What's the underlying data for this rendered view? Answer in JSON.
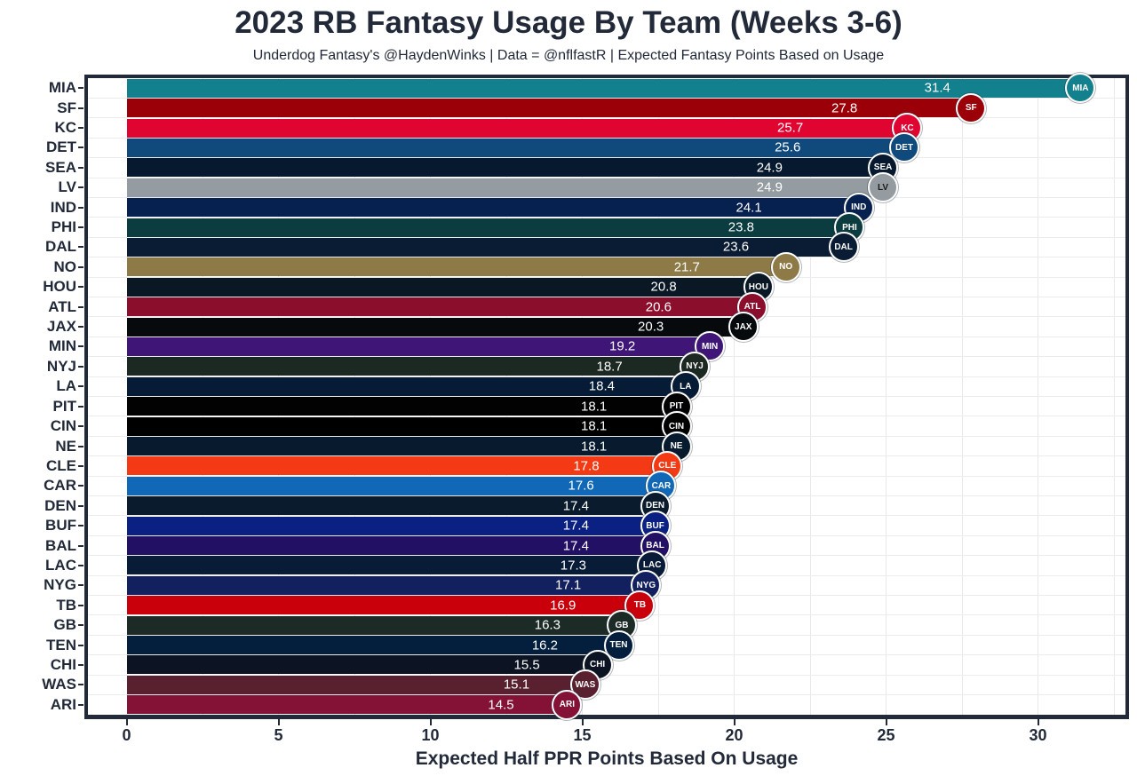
{
  "header": {
    "title": "2023 RB Fantasy Usage By Team (Weeks 3-6)",
    "subtitle": "Underdog Fantasy's @HaydenWinks | Data = @nflfastR | Expected Fantasy Points Based on Usage"
  },
  "axis": {
    "xlabel": "Expected Half PPR Points Based On Usage",
    "x_ticks": [
      0,
      5,
      10,
      15,
      20,
      25,
      30
    ]
  },
  "colors": {
    "text": "#222A39",
    "panel_border": "#222A39",
    "grid_line": "#E8E8EC",
    "bar_value_text": "#FFFFFF",
    "background": "#FFFFFF"
  },
  "chart_data": {
    "type": "bar",
    "orientation": "horizontal",
    "title": "2023 RB Fantasy Usage By Team (Weeks 3-6)",
    "subtitle": "Underdog Fantasy's @HaydenWinks | Data = @nflfastR | Expected Fantasy Points Based on Usage",
    "xlabel": "Expected Half PPR Points Based On Usage",
    "ylabel": "",
    "xlim": [
      0,
      32.5
    ],
    "x_ticks": [
      0,
      5,
      10,
      15,
      20,
      25,
      30
    ],
    "grid": "on",
    "legend": "none",
    "value_labels": "inside-end",
    "categories": [
      "MIA",
      "SF",
      "KC",
      "DET",
      "SEA",
      "LV",
      "IND",
      "PHI",
      "DAL",
      "NO",
      "HOU",
      "ATL",
      "JAX",
      "MIN",
      "NYJ",
      "LA",
      "PIT",
      "CIN",
      "NE",
      "CLE",
      "CAR",
      "DEN",
      "BUF",
      "BAL",
      "LAC",
      "NYG",
      "TB",
      "GB",
      "TEN",
      "CHI",
      "WAS",
      "ARI"
    ],
    "values": [
      31.4,
      27.8,
      25.7,
      25.6,
      24.9,
      24.9,
      24.1,
      23.8,
      23.6,
      21.7,
      20.8,
      20.6,
      20.3,
      19.2,
      18.7,
      18.4,
      18.1,
      18.1,
      18.1,
      17.8,
      17.6,
      17.4,
      17.4,
      17.4,
      17.3,
      17.1,
      16.9,
      16.3,
      16.2,
      15.5,
      15.1,
      14.5
    ],
    "teams": [
      {
        "abbr": "MIA",
        "value": 31.4,
        "color": "#12808D",
        "logo": "miami-dolphins-logo"
      },
      {
        "abbr": "SF",
        "value": 27.8,
        "color": "#9B0008",
        "logo": "san-francisco-49ers-logo"
      },
      {
        "abbr": "KC",
        "value": 25.7,
        "color": "#E00531",
        "logo": "kansas-city-chiefs-logo"
      },
      {
        "abbr": "DET",
        "value": 25.6,
        "color": "#10497C",
        "logo": "detroit-lions-logo"
      },
      {
        "abbr": "SEA",
        "value": 24.9,
        "color": "#06192F",
        "logo": "seattle-seahawks-logo"
      },
      {
        "abbr": "LV",
        "value": 24.9,
        "color": "#949CA1",
        "logo": "las-vegas-raiders-logo",
        "badge_text": "#1A1A1A"
      },
      {
        "abbr": "IND",
        "value": 24.1,
        "color": "#062150",
        "logo": "indianapolis-colts-logo"
      },
      {
        "abbr": "PHI",
        "value": 23.8,
        "color": "#0A3C40",
        "logo": "philadelphia-eagles-logo"
      },
      {
        "abbr": "DAL",
        "value": 23.6,
        "color": "#0A1C33",
        "logo": "dallas-cowboys-logo"
      },
      {
        "abbr": "NO",
        "value": 21.7,
        "color": "#8E7A46",
        "logo": "new-orleans-saints-logo"
      },
      {
        "abbr": "HOU",
        "value": 20.8,
        "color": "#0A1826",
        "logo": "houston-texans-logo"
      },
      {
        "abbr": "ATL",
        "value": 20.6,
        "color": "#8C0E2D",
        "logo": "atlanta-falcons-logo"
      },
      {
        "abbr": "JAX",
        "value": 20.3,
        "color": "#060A0C",
        "logo": "jacksonville-jaguars-logo"
      },
      {
        "abbr": "MIN",
        "value": 19.2,
        "color": "#3F1678",
        "logo": "minnesota-vikings-logo"
      },
      {
        "abbr": "NYJ",
        "value": 18.7,
        "color": "#1C2922",
        "logo": "new-york-jets-logo"
      },
      {
        "abbr": "LA",
        "value": 18.4,
        "color": "#061B35",
        "logo": "los-angeles-rams-logo"
      },
      {
        "abbr": "PIT",
        "value": 18.1,
        "color": "#020202",
        "logo": "pittsburgh-steelers-logo"
      },
      {
        "abbr": "CIN",
        "value": 18.1,
        "color": "#000000",
        "logo": "cincinnati-bengals-logo"
      },
      {
        "abbr": "NE",
        "value": 18.1,
        "color": "#081A2E",
        "logo": "new-england-patriots-logo"
      },
      {
        "abbr": "CLE",
        "value": 17.8,
        "color": "#F43A14",
        "logo": "cleveland-browns-logo"
      },
      {
        "abbr": "CAR",
        "value": 17.6,
        "color": "#1068B6",
        "logo": "carolina-panthers-logo"
      },
      {
        "abbr": "DEN",
        "value": 17.4,
        "color": "#0A1B2E",
        "logo": "denver-broncos-logo"
      },
      {
        "abbr": "BUF",
        "value": 17.4,
        "color": "#0A2082",
        "logo": "buffalo-bills-logo"
      },
      {
        "abbr": "BAL",
        "value": 17.4,
        "color": "#221065",
        "logo": "baltimore-ravens-logo"
      },
      {
        "abbr": "LAC",
        "value": 17.3,
        "color": "#081C38",
        "logo": "los-angeles-chargers-logo"
      },
      {
        "abbr": "NYG",
        "value": 17.1,
        "color": "#13205F",
        "logo": "new-york-giants-logo"
      },
      {
        "abbr": "TB",
        "value": 16.9,
        "color": "#C9000B",
        "logo": "tampa-bay-buccaneers-logo"
      },
      {
        "abbr": "GB",
        "value": 16.3,
        "color": "#1C2B25",
        "logo": "green-bay-packers-logo"
      },
      {
        "abbr": "TEN",
        "value": 16.2,
        "color": "#041E3E",
        "logo": "tennessee-titans-logo"
      },
      {
        "abbr": "CHI",
        "value": 15.5,
        "color": "#0C1322",
        "logo": "chicago-bears-logo"
      },
      {
        "abbr": "WAS",
        "value": 15.1,
        "color": "#59212F",
        "logo": "washington-commanders-logo"
      },
      {
        "abbr": "ARI",
        "value": 14.5,
        "color": "#831236",
        "logo": "arizona-cardinals-logo"
      }
    ]
  }
}
